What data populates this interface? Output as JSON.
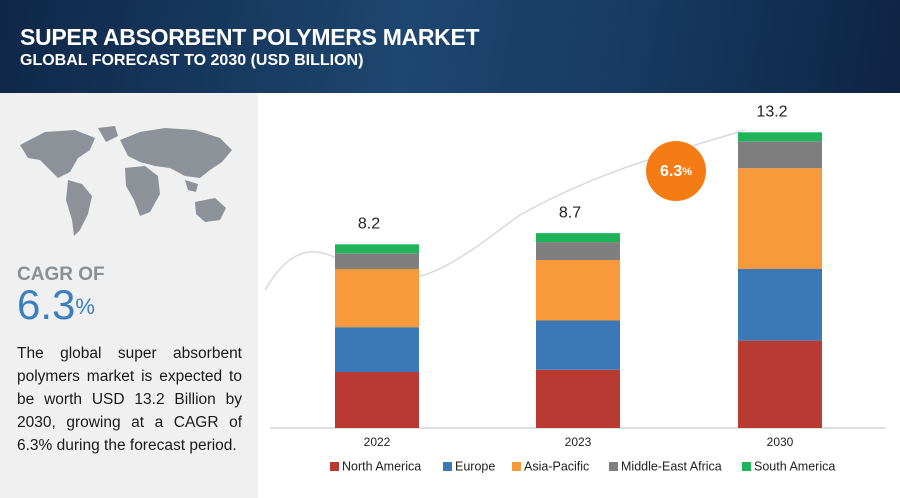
{
  "header": {
    "title": "SUPER ABSORBENT POLYMERS MARKET",
    "subtitle": "GLOBAL FORECAST TO 2030 (USD BILLION)"
  },
  "side_panel": {
    "cagr_label": "CAGR OF",
    "cagr_number": "6.3",
    "cagr_unit": "%",
    "description": "The global super absorbent polymers market is expected to be worth USD 13.2 Billion by 2030, growing at a CAGR of 6.3% during the forecast period."
  },
  "badge": {
    "number": "6.3",
    "unit": "%"
  },
  "chart_data": {
    "type": "stacked_bar",
    "categories": [
      "2022",
      "2023",
      "2030"
    ],
    "totals": [
      8.2,
      8.7,
      13.2
    ],
    "series": [
      {
        "name": "North America",
        "color": "#b83a32",
        "values": [
          2.5,
          2.6,
          3.9
        ]
      },
      {
        "name": "Europe",
        "color": "#3a78b8",
        "values": [
          2.0,
          2.2,
          3.2
        ]
      },
      {
        "name": "Asia-Pacific",
        "color": "#f8993c",
        "values": [
          2.6,
          2.7,
          4.5
        ]
      },
      {
        "name": "Middle-East Africa",
        "color": "#7f7f7f",
        "values": [
          0.7,
          0.8,
          1.2
        ]
      },
      {
        "name": "South America",
        "color": "#1fb35a",
        "values": [
          0.4,
          0.4,
          0.4
        ]
      }
    ]
  }
}
